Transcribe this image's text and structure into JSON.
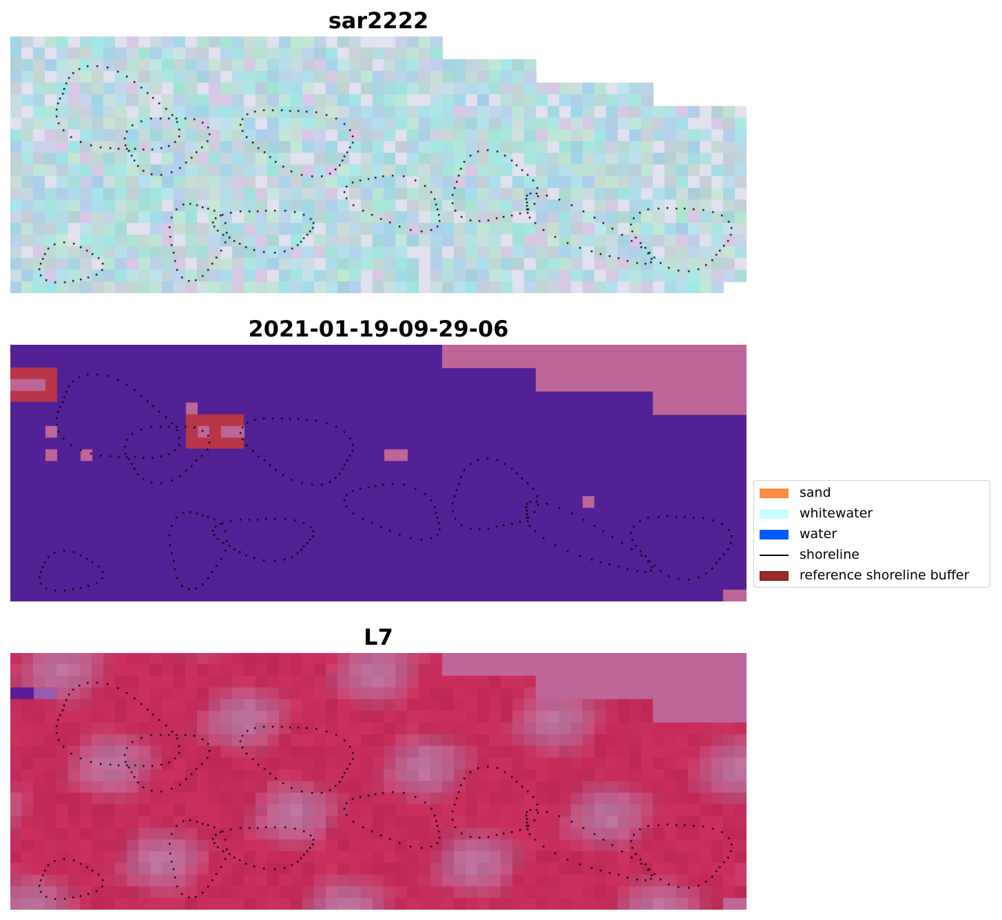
{
  "panels": [
    {
      "title": "sar2222",
      "style": "sar"
    },
    {
      "title": "2021-01-19-09-29-06",
      "style": "classification"
    },
    {
      "title": "L7",
      "style": "index"
    }
  ],
  "legend": {
    "items": [
      {
        "label": "sand",
        "kind": "patch",
        "color": "#ff8c3f"
      },
      {
        "label": "whitewater",
        "kind": "patch",
        "color": "#c8fffe"
      },
      {
        "label": "water",
        "kind": "patch",
        "color": "#005aff"
      },
      {
        "label": "shoreline",
        "kind": "line",
        "color": "#000000"
      },
      {
        "label": "reference shoreline buffer",
        "kind": "patch",
        "color": "#9e2a2b",
        "edge": "#6e1010"
      }
    ]
  },
  "colors": {
    "classification_background": "#522196",
    "nodata": "#bd6697",
    "buffer": "#b83648",
    "index_base": "#c0305e",
    "sar_base": "#a9d6d8"
  }
}
